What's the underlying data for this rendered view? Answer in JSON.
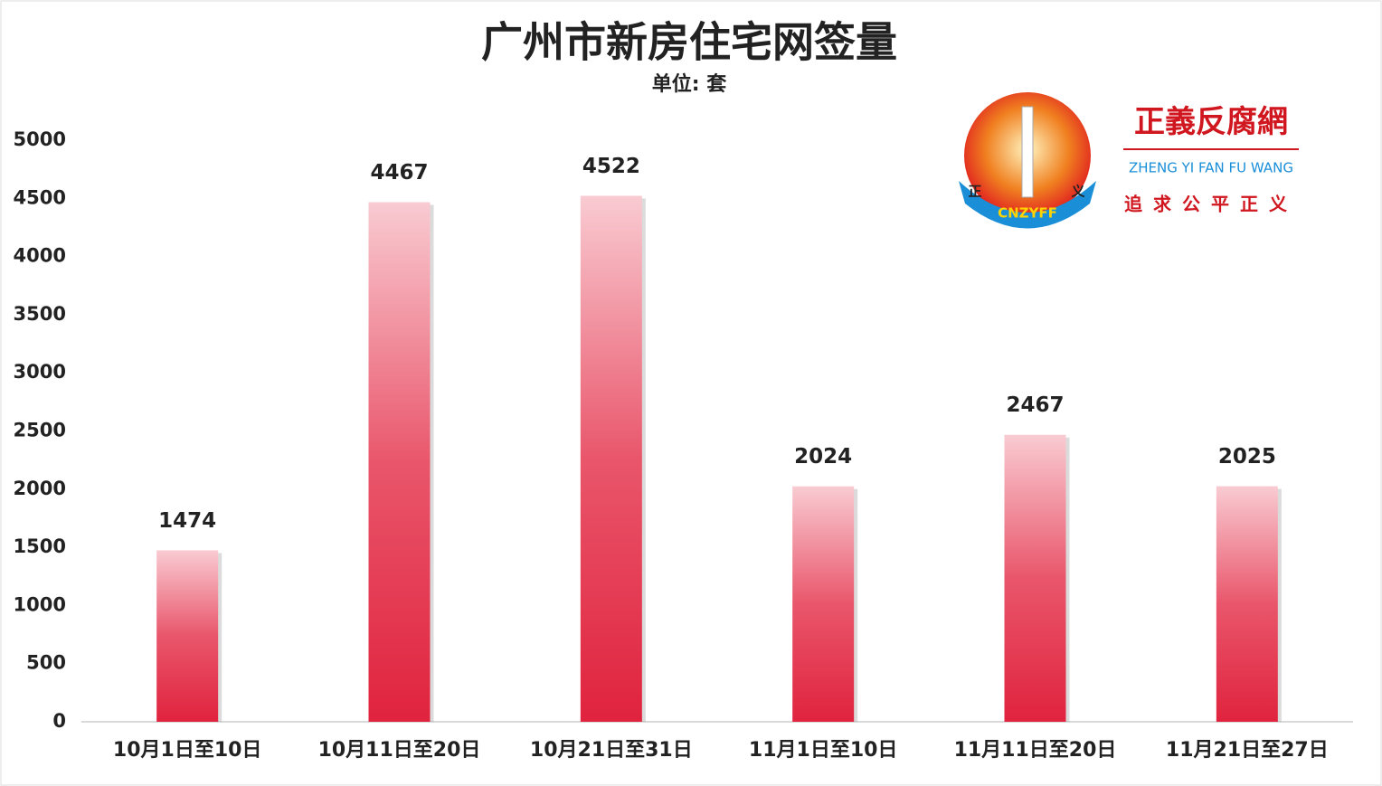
{
  "chart_data": {
    "type": "bar",
    "title": "广州市新房住宅网签量",
    "subtitle": "单位: 套",
    "categories": [
      "10月1日至10日",
      "10月11日至20日",
      "10月21日至31日",
      "11月1日至10日",
      "11月11日至20日",
      "11月21日至27日"
    ],
    "values": [
      1474,
      4467,
      4522,
      2024,
      2467,
      2025
    ],
    "color": "#e0233e",
    "ylim": [
      0,
      5000
    ],
    "yticks": [
      0,
      500,
      1000,
      1500,
      2000,
      2500,
      3000,
      3500,
      4000,
      4500,
      5000
    ],
    "grid": false,
    "watermark": {
      "name": "正義反腐網",
      "pinyin": "ZHENG YI FAN FU WANG",
      "slogan": "追求公平正义",
      "badge": "CNZYFF",
      "left_char": "正",
      "right_char": "义"
    }
  }
}
